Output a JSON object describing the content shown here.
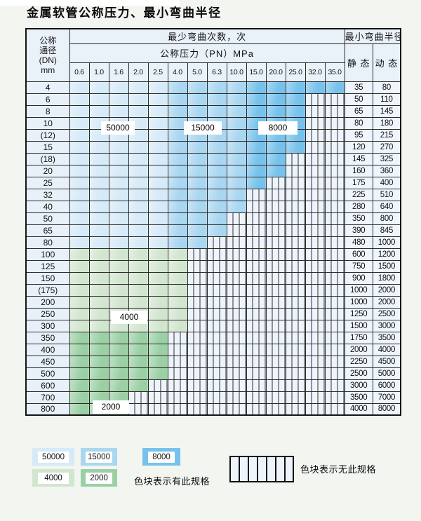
{
  "title": "金属软管公称压力、最小弯曲半径",
  "colors": {
    "cycles_50000": "#d6eaf8",
    "cycles_15000": "#a9d6f1",
    "cycles_8000": "#77c2ec",
    "cycles_4000": "#d2e6cf",
    "cycles_2000": "#9bd0a4",
    "no_spec_hatch_bg": "#eef4fb",
    "header_bg": "#e9f1f9",
    "dn_col_bg": "#e8f1fa",
    "value_col_bg": "#eef5fc"
  },
  "cycle_values": {
    "v50000": "50000",
    "v15000": "15000",
    "v8000": "8000",
    "v4000": "4000",
    "v2000": "2000"
  },
  "table": {
    "dn_header_lines": [
      "公称",
      "通径",
      "(DN)",
      "mm"
    ],
    "bend_cycles_header": "最少弯曲次数，次",
    "pressure_header": "公称压力（PN）MPa",
    "radius_header": "最小弯曲半径",
    "static_header": "静 态",
    "dynamic_header": "动 态",
    "pressure_columns": [
      "0.6",
      "1.0",
      "1.6",
      "2.0",
      "2.5",
      "4.0",
      "5.0",
      "6.3",
      "10.0",
      "15.0",
      "20.0",
      "25.0",
      "32.0",
      "35.0"
    ],
    "zone_by_column_blue": {
      "50000": [
        "0.6",
        "1.0",
        "1.6",
        "2.0",
        "2.5"
      ],
      "15000": [
        "4.0",
        "5.0",
        "6.3",
        "10.0"
      ],
      "8000": [
        "15.0",
        "20.0",
        "25.0",
        "32.0",
        "35.0"
      ]
    },
    "rows": [
      {
        "dn": "4",
        "colored": 14,
        "zone": "blue",
        "static": "35",
        "dynamic": "80"
      },
      {
        "dn": "6",
        "colored": 12,
        "zone": "blue",
        "static": "50",
        "dynamic": "110"
      },
      {
        "dn": "8",
        "colored": 12,
        "zone": "blue",
        "static": "65",
        "dynamic": "145"
      },
      {
        "dn": "10",
        "colored": 12,
        "zone": "blue",
        "static": "80",
        "dynamic": "180"
      },
      {
        "dn": "(12)",
        "colored": 12,
        "zone": "blue",
        "static": "95",
        "dynamic": "215"
      },
      {
        "dn": "15",
        "colored": 12,
        "zone": "blue",
        "static": "120",
        "dynamic": "270"
      },
      {
        "dn": "(18)",
        "colored": 11,
        "zone": "blue",
        "static": "145",
        "dynamic": "325"
      },
      {
        "dn": "20",
        "colored": 11,
        "zone": "blue",
        "static": "160",
        "dynamic": "360"
      },
      {
        "dn": "25",
        "colored": 10,
        "zone": "blue",
        "static": "175",
        "dynamic": "400"
      },
      {
        "dn": "32",
        "colored": 9,
        "zone": "blue",
        "static": "225",
        "dynamic": "510"
      },
      {
        "dn": "40",
        "colored": 9,
        "zone": "blue",
        "static": "280",
        "dynamic": "640"
      },
      {
        "dn": "50",
        "colored": 8,
        "zone": "blue",
        "static": "350",
        "dynamic": "800"
      },
      {
        "dn": "65",
        "colored": 8,
        "zone": "blue",
        "static": "390",
        "dynamic": "845"
      },
      {
        "dn": "80",
        "colored": 7,
        "zone": "blue",
        "static": "480",
        "dynamic": "1000"
      },
      {
        "dn": "100",
        "colored": 6,
        "zone": "g1",
        "static": "600",
        "dynamic": "1200"
      },
      {
        "dn": "125",
        "colored": 6,
        "zone": "g1",
        "static": "750",
        "dynamic": "1500"
      },
      {
        "dn": "150",
        "colored": 6,
        "zone": "g1",
        "static": "900",
        "dynamic": "1800"
      },
      {
        "dn": "(175)",
        "colored": 6,
        "zone": "g1",
        "static": "1000",
        "dynamic": "2000"
      },
      {
        "dn": "200",
        "colored": 6,
        "zone": "g1",
        "static": "1000",
        "dynamic": "2000"
      },
      {
        "dn": "250",
        "colored": 6,
        "zone": "g1",
        "static": "1250",
        "dynamic": "2500"
      },
      {
        "dn": "300",
        "colored": 6,
        "zone": "g1",
        "static": "1500",
        "dynamic": "3000"
      },
      {
        "dn": "350",
        "colored": 5,
        "zone": "g2",
        "static": "1750",
        "dynamic": "3500"
      },
      {
        "dn": "400",
        "colored": 5,
        "zone": "g2",
        "static": "2000",
        "dynamic": "4000"
      },
      {
        "dn": "450",
        "colored": 5,
        "zone": "g2",
        "static": "2250",
        "dynamic": "4500"
      },
      {
        "dn": "500",
        "colored": 5,
        "zone": "g2",
        "static": "2500",
        "dynamic": "5000"
      },
      {
        "dn": "600",
        "colored": 4,
        "zone": "g2",
        "static": "3000",
        "dynamic": "6000"
      },
      {
        "dn": "700",
        "colored": 3,
        "zone": "g2",
        "static": "3500",
        "dynamic": "7000"
      },
      {
        "dn": "800",
        "colored": 3,
        "zone": "g2",
        "static": "4000",
        "dynamic": "8000"
      }
    ]
  },
  "legend": {
    "has_spec_text": "色块表示有此规格",
    "no_spec_text": "色块表示无此规格"
  }
}
